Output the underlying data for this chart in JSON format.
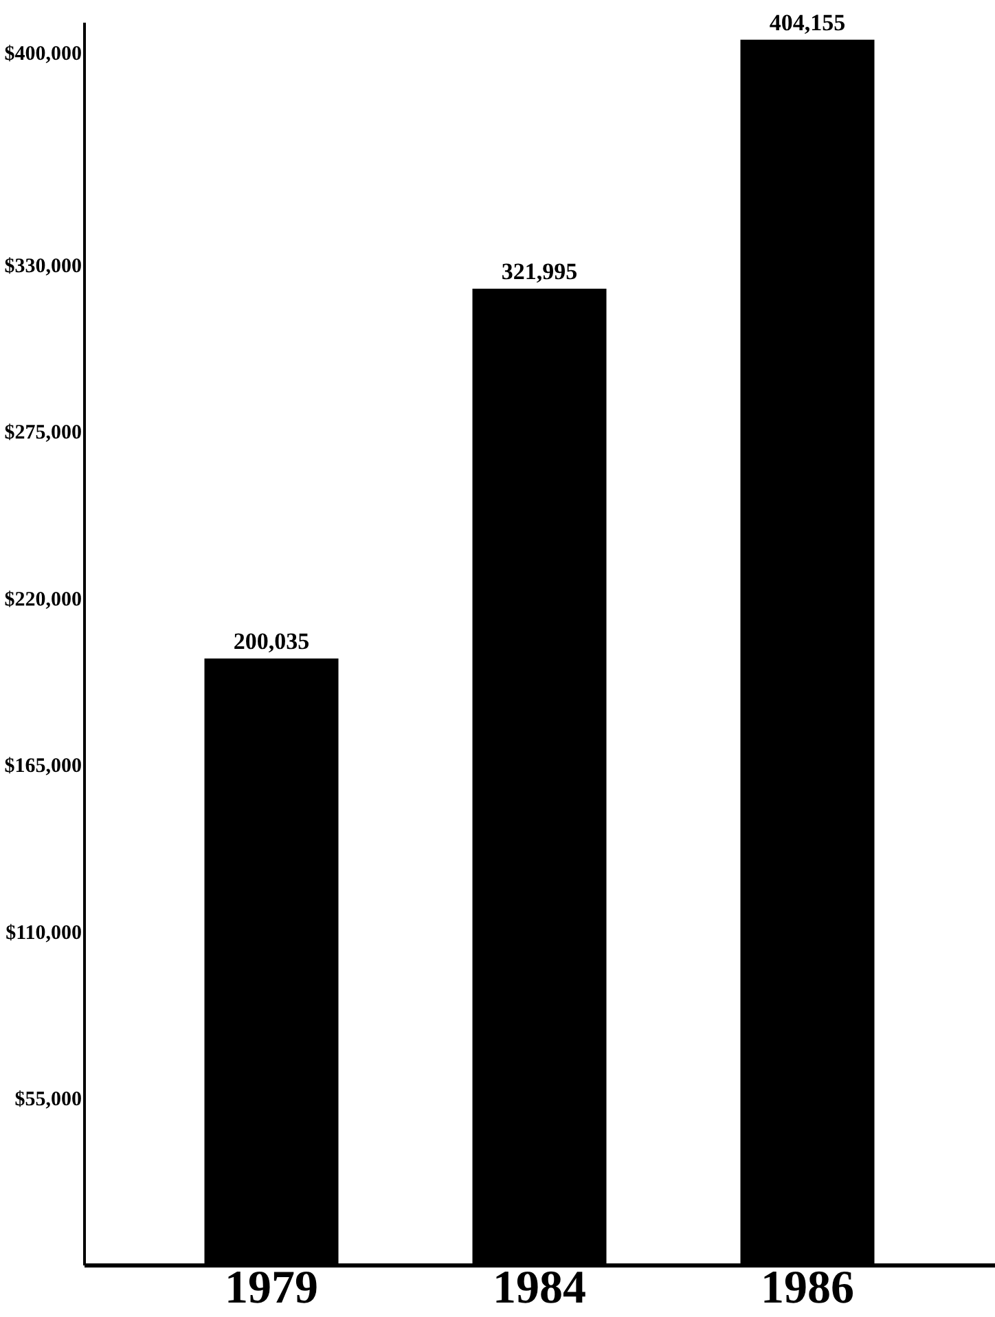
{
  "chart_data": {
    "type": "bar",
    "categories": [
      "1979",
      "1984",
      "1986"
    ],
    "values": [
      200035,
      321995,
      404155
    ],
    "color": "#000000",
    "value_labels": [
      "200,035",
      "321,995",
      "404,155"
    ],
    "ylim": [
      0,
      410000
    ],
    "yticks": [
      {
        "value": 55000,
        "label": "$55,000"
      },
      {
        "value": 110000,
        "label": "$110,000"
      },
      {
        "value": 165000,
        "label": "$165,000"
      },
      {
        "value": 220000,
        "label": "$220,000"
      },
      {
        "value": 275000,
        "label": "$275,000"
      },
      {
        "value": 330000,
        "label": "$330,000"
      },
      {
        "value": 400000,
        "label": "$400,000"
      }
    ],
    "grid": false
  }
}
